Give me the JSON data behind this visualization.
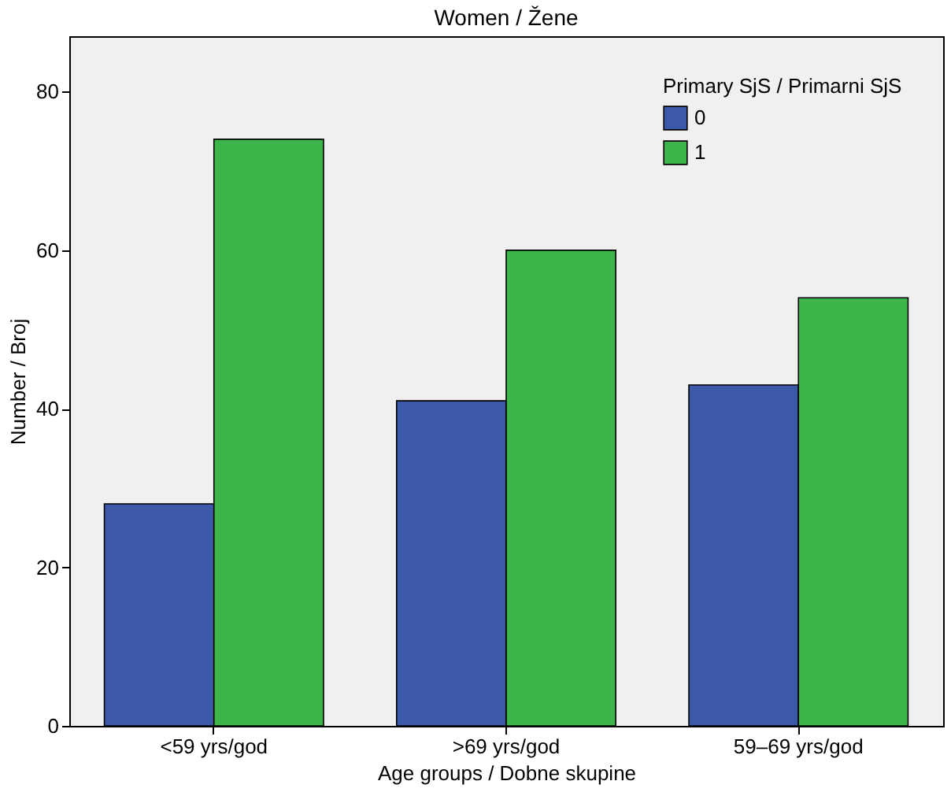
{
  "chart_data": {
    "type": "bar",
    "title": "Women / Žene",
    "xlabel": "Age groups / Dobne skupine",
    "ylabel": "Number / Broj",
    "legend_title": "Primary SjS / Primarni SjS",
    "categories": [
      "<59 yrs/god",
      ">69 yrs/god",
      "59–69 yrs/god"
    ],
    "series": [
      {
        "name": "0",
        "color": "#3c58a8",
        "values": [
          28,
          41,
          43
        ]
      },
      {
        "name": "1",
        "color": "#3db54a",
        "values": [
          74,
          60,
          54
        ]
      }
    ],
    "ylim": [
      0,
      87
    ],
    "yticks": [
      0,
      20,
      40,
      60,
      80
    ],
    "grid": false,
    "legend": "top right"
  }
}
